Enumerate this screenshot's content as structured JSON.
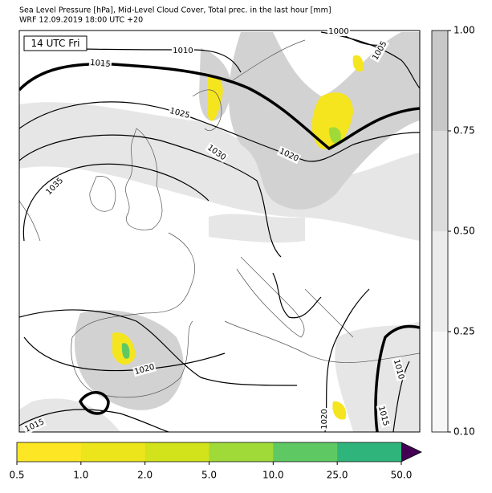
{
  "title": "Sea Level Pressure [hPa], Mid-Level Cloud Cover, Total prec. in the last hour [mm]",
  "subtitle": "WRF 12.09.2019 18:00 UTC +20",
  "time_label": "14 UTC Fri",
  "isobar_labels": [
    1000,
    1005,
    1010,
    1015,
    1025,
    1030,
    1020,
    1035,
    1020,
    1015,
    1020,
    1010,
    1015
  ],
  "cloud_colorbar": {
    "ticks": [
      {
        "value": 0.1,
        "label": "0.10"
      },
      {
        "value": 0.25,
        "label": "0.25"
      },
      {
        "value": 0.5,
        "label": "0.50"
      },
      {
        "value": 0.75,
        "label": "0.75"
      },
      {
        "value": 1.0,
        "label": "1.00"
      }
    ],
    "colors": [
      "#f7f7f7",
      "#ebebeb",
      "#dcdcdc",
      "#c8c8c8"
    ]
  },
  "precip_colorbar": {
    "ticks": [
      {
        "value": 0.5,
        "label": "0.5"
      },
      {
        "value": 1.0,
        "label": "1.0"
      },
      {
        "value": 2.0,
        "label": "2.0"
      },
      {
        "value": 5.0,
        "label": "5.0"
      },
      {
        "value": 10.0,
        "label": "10.0"
      },
      {
        "value": 25.0,
        "label": "25.0"
      },
      {
        "value": 50.0,
        "label": "50.0"
      }
    ],
    "colors": [
      "#fde725",
      "#ede51b",
      "#d2e21b",
      "#a0da39",
      "#5ec962",
      "#2fb47c",
      "#3b528b"
    ],
    "extend_color": "#440154"
  }
}
